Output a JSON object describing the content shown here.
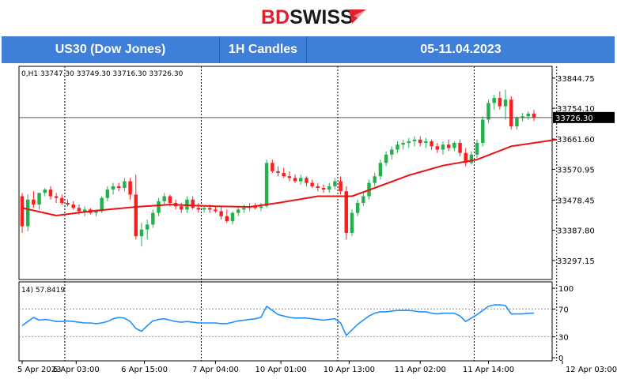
{
  "brand": {
    "left": "BD",
    "right": "SWISS"
  },
  "header": {
    "instrument": "US30 (Dow Jones)",
    "timeframe": "1H Candles",
    "dates": "05-11.04.2023"
  },
  "chart_data": {
    "type": "candlestick",
    "info_line": "0,H1  33747.30 33749.30 33716.30 33726.30",
    "price_axis": {
      "ticks": [
        "33844.75",
        "33754.10",
        "33661.60",
        "33570.95",
        "33478.45",
        "33387.80",
        "33297.15"
      ],
      "range": [
        33240,
        33880
      ]
    },
    "current_price": {
      "label": "33726.30",
      "value": 33726.3
    },
    "time_labels": [
      "5 Apr 2023",
      "6 Apr 03:00",
      "6 Apr 15:00",
      "7 Apr 04:00",
      "10 Apr 01:00",
      "10 Apr 13:00",
      "11 Apr 02:00",
      "11 Apr 14:00",
      "12 Apr 03:00"
    ],
    "time_label_rows": [
      0,
      9.5,
      21.5,
      34,
      45.5,
      57.5,
      70,
      82,
      95
    ],
    "vertical_gridlines_rows": [
      7.5,
      31.5,
      55.5,
      79.5,
      94
    ],
    "bullish_color": "#22b14c",
    "bearish_color": "#ff1c1c",
    "candles": [
      [
        33490,
        33500,
        33380,
        33400
      ],
      [
        33400,
        33495,
        33385,
        33480
      ],
      [
        33480,
        33505,
        33455,
        33465
      ],
      [
        33465,
        33500,
        33450,
        33500
      ],
      [
        33500,
        33515,
        33490,
        33510
      ],
      [
        33510,
        33520,
        33480,
        33490
      ],
      [
        33490,
        33500,
        33470,
        33485
      ],
      [
        33485,
        33495,
        33465,
        33470
      ],
      [
        33470,
        33480,
        33460,
        33465
      ],
      [
        33465,
        33475,
        33450,
        33455
      ],
      [
        33455,
        33465,
        33435,
        33445
      ],
      [
        33445,
        33460,
        33430,
        33450
      ],
      [
        33450,
        33455,
        33435,
        33440
      ],
      [
        33440,
        33450,
        33430,
        33445
      ],
      [
        33445,
        33490,
        33440,
        33485
      ],
      [
        33485,
        33520,
        33475,
        33510
      ],
      [
        33510,
        33530,
        33495,
        33520
      ],
      [
        33520,
        33530,
        33505,
        33515
      ],
      [
        33515,
        33545,
        33505,
        33535
      ],
      [
        33535,
        33545,
        33480,
        33495
      ],
      [
        33495,
        33555,
        33360,
        33370
      ],
      [
        33370,
        33410,
        33340,
        33390
      ],
      [
        33390,
        33420,
        33360,
        33405
      ],
      [
        33405,
        33450,
        33395,
        33440
      ],
      [
        33440,
        33485,
        33430,
        33475
      ],
      [
        33475,
        33500,
        33465,
        33490
      ],
      [
        33490,
        33495,
        33460,
        33470
      ],
      [
        33470,
        33480,
        33450,
        33460
      ],
      [
        33460,
        33470,
        33440,
        33450
      ],
      [
        33450,
        33490,
        33440,
        33480
      ],
      [
        33480,
        33490,
        33450,
        33455
      ],
      [
        33455,
        33470,
        33440,
        33450
      ],
      [
        33450,
        33460,
        33440,
        33455
      ],
      [
        33455,
        33465,
        33440,
        33450
      ],
      [
        33450,
        33460,
        33440,
        33445
      ],
      [
        33445,
        33460,
        33420,
        33430
      ],
      [
        33430,
        33450,
        33410,
        33415
      ],
      [
        33415,
        33445,
        33405,
        33440
      ],
      [
        33440,
        33460,
        33430,
        33450
      ],
      [
        33450,
        33465,
        33440,
        33455
      ],
      [
        33455,
        33470,
        33445,
        33460
      ],
      [
        33460,
        33470,
        33450,
        33455
      ],
      [
        33455,
        33470,
        33445,
        33460
      ],
      [
        33460,
        33600,
        33455,
        33590
      ],
      [
        33590,
        33600,
        33560,
        33565
      ],
      [
        33565,
        33580,
        33550,
        33560
      ],
      [
        33560,
        33575,
        33545,
        33550
      ],
      [
        33550,
        33565,
        33535,
        33545
      ],
      [
        33545,
        33555,
        33530,
        33535
      ],
      [
        33535,
        33555,
        33525,
        33545
      ],
      [
        33545,
        33550,
        33520,
        33530
      ],
      [
        33530,
        33540,
        33515,
        33520
      ],
      [
        33520,
        33530,
        33505,
        33515
      ],
      [
        33515,
        33525,
        33500,
        33510
      ],
      [
        33510,
        33530,
        33500,
        33520
      ],
      [
        33520,
        33545,
        33510,
        33535
      ],
      [
        33535,
        33550,
        33495,
        33505
      ],
      [
        33505,
        33520,
        33360,
        33380
      ],
      [
        33380,
        33450,
        33370,
        33440
      ],
      [
        33440,
        33480,
        33430,
        33470
      ],
      [
        33470,
        33500,
        33460,
        33490
      ],
      [
        33490,
        33540,
        33480,
        33530
      ],
      [
        33530,
        33560,
        33520,
        33550
      ],
      [
        33550,
        33600,
        33540,
        33590
      ],
      [
        33590,
        33625,
        33580,
        33615
      ],
      [
        33615,
        33640,
        33600,
        33630
      ],
      [
        33630,
        33655,
        33620,
        33645
      ],
      [
        33645,
        33660,
        33630,
        33650
      ],
      [
        33650,
        33665,
        33635,
        33655
      ],
      [
        33655,
        33670,
        33640,
        33660
      ],
      [
        33660,
        33670,
        33640,
        33650
      ],
      [
        33650,
        33665,
        33635,
        33655
      ],
      [
        33655,
        33660,
        33630,
        33640
      ],
      [
        33640,
        33650,
        33620,
        33630
      ],
      [
        33630,
        33655,
        33615,
        33645
      ],
      [
        33645,
        33660,
        33625,
        33635
      ],
      [
        33635,
        33655,
        33625,
        33650
      ],
      [
        33650,
        33660,
        33610,
        33620
      ],
      [
        33620,
        33635,
        33580,
        33590
      ],
      [
        33590,
        33625,
        33585,
        33615
      ],
      [
        33615,
        33660,
        33605,
        33650
      ],
      [
        33650,
        33730,
        33640,
        33720
      ],
      [
        33720,
        33780,
        33710,
        33770
      ],
      [
        33770,
        33795,
        33750,
        33785
      ],
      [
        33785,
        33805,
        33750,
        33760
      ],
      [
        33760,
        33810,
        33720,
        33780
      ],
      [
        33780,
        33790,
        33690,
        33700
      ],
      [
        33700,
        33730,
        33690,
        33725
      ],
      [
        33725,
        33740,
        33715,
        33730
      ],
      [
        33730,
        33745,
        33720,
        33738
      ],
      [
        33738,
        33749,
        33716,
        33726
      ]
    ],
    "ma": {
      "color": "#ee1111",
      "values": [
        [
          0,
          33455
        ],
        [
          6,
          33432
        ],
        [
          12,
          33445
        ],
        [
          20,
          33458
        ],
        [
          26,
          33465
        ],
        [
          34,
          33460
        ],
        [
          40,
          33458
        ],
        [
          45,
          33470
        ],
        [
          52,
          33490
        ],
        [
          58,
          33490
        ],
        [
          62,
          33515
        ],
        [
          68,
          33553
        ],
        [
          74,
          33582
        ],
        [
          80,
          33600
        ],
        [
          86,
          33640
        ],
        [
          94,
          33660
        ]
      ]
    },
    "rsi": {
      "label": "14) 57.8419",
      "levels": [
        "100",
        "70",
        "30",
        "0"
      ],
      "range": [
        0,
        100
      ],
      "color": "#1e90ff",
      "values": [
        [
          0,
          46
        ],
        [
          1,
          52
        ],
        [
          2,
          58
        ],
        [
          3,
          54
        ],
        [
          4,
          55
        ],
        [
          5,
          54
        ],
        [
          6,
          52
        ],
        [
          7,
          52
        ],
        [
          8,
          53
        ],
        [
          9,
          52
        ],
        [
          10,
          51
        ],
        [
          11,
          50
        ],
        [
          12,
          50
        ],
        [
          13,
          49
        ],
        [
          14,
          50
        ],
        [
          15,
          52
        ],
        [
          16,
          56
        ],
        [
          17,
          58
        ],
        [
          18,
          57
        ],
        [
          19,
          52
        ],
        [
          20,
          42
        ],
        [
          21,
          38
        ],
        [
          22,
          46
        ],
        [
          23,
          53
        ],
        [
          24,
          55
        ],
        [
          25,
          56
        ],
        [
          26,
          54
        ],
        [
          27,
          52
        ],
        [
          28,
          51
        ],
        [
          29,
          52
        ],
        [
          30,
          51
        ],
        [
          31,
          50
        ],
        [
          32,
          50
        ],
        [
          33,
          50
        ],
        [
          34,
          50
        ],
        [
          35,
          49
        ],
        [
          36,
          49
        ],
        [
          37,
          51
        ],
        [
          38,
          53
        ],
        [
          39,
          54
        ],
        [
          40,
          55
        ],
        [
          41,
          56
        ],
        [
          42,
          58
        ],
        [
          43,
          74
        ],
        [
          44,
          68
        ],
        [
          45,
          62
        ],
        [
          46,
          60
        ],
        [
          47,
          58
        ],
        [
          48,
          57
        ],
        [
          49,
          57
        ],
        [
          50,
          57
        ],
        [
          51,
          56
        ],
        [
          52,
          55
        ],
        [
          53,
          54
        ],
        [
          54,
          55
        ],
        [
          55,
          56
        ],
        [
          56,
          50
        ],
        [
          57,
          32
        ],
        [
          58,
          40
        ],
        [
          59,
          48
        ],
        [
          60,
          54
        ],
        [
          61,
          60
        ],
        [
          62,
          64
        ],
        [
          63,
          66
        ],
        [
          64,
          66
        ],
        [
          65,
          67
        ],
        [
          66,
          68
        ],
        [
          67,
          68
        ],
        [
          68,
          68
        ],
        [
          69,
          67
        ],
        [
          70,
          66
        ],
        [
          71,
          66
        ],
        [
          72,
          64
        ],
        [
          73,
          63
        ],
        [
          74,
          64
        ],
        [
          75,
          64
        ],
        [
          76,
          64
        ],
        [
          77,
          60
        ],
        [
          78,
          52
        ],
        [
          79,
          57
        ],
        [
          80,
          62
        ],
        [
          81,
          68
        ],
        [
          82,
          74
        ],
        [
          83,
          76
        ],
        [
          84,
          76
        ],
        [
          85,
          75
        ],
        [
          86,
          63
        ],
        [
          87,
          63
        ],
        [
          88,
          63
        ],
        [
          89,
          64
        ],
        [
          90,
          64
        ]
      ]
    }
  }
}
